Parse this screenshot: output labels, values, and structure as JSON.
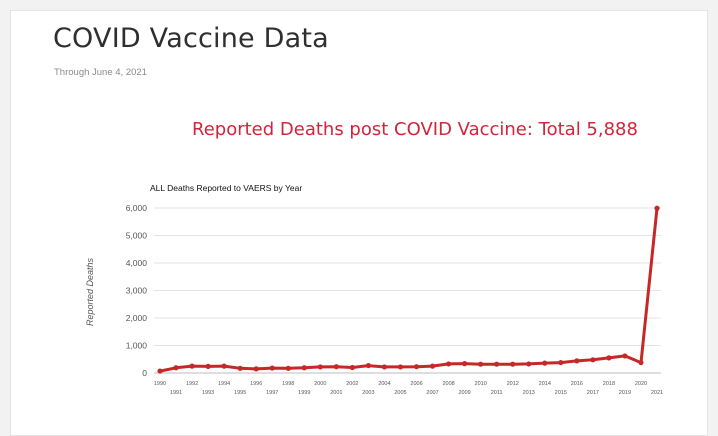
{
  "page": {
    "title": "COVID Vaccine Data",
    "subtitle": "Through June 4, 2021",
    "headline": "Reported Deaths post COVID Vaccine: Total 5,888"
  },
  "colors": {
    "headline": "#d2243a",
    "series": "#c62828",
    "grid": "#e3e3e3"
  },
  "chart_data": {
    "type": "line",
    "title": "ALL Deaths Reported to VAERS by Year",
    "xlabel": "",
    "ylabel": "Reported Deaths",
    "ylim": [
      0,
      6000
    ],
    "yticks": [
      0,
      1000,
      2000,
      3000,
      4000,
      5000,
      6000
    ],
    "ytick_labels": [
      "0",
      "1,000",
      "2,000",
      "3,000",
      "4,000",
      "5,000",
      "6,000"
    ],
    "grid": true,
    "legend": "none",
    "x": [
      "1990",
      "1991",
      "1992",
      "1993",
      "1994",
      "1995",
      "1996",
      "1997",
      "1998",
      "1999",
      "2000",
      "2001",
      "2002",
      "2003",
      "2004",
      "2005",
      "2006",
      "2007",
      "2008",
      "2009",
      "2010",
      "2011",
      "2012",
      "2013",
      "2014",
      "2015",
      "2016",
      "2017",
      "2018",
      "2019",
      "2020",
      "2021"
    ],
    "series": [
      {
        "values": [
          70,
          190,
          250,
          240,
          250,
          170,
          150,
          180,
          170,
          190,
          220,
          230,
          200,
          270,
          220,
          220,
          230,
          250,
          330,
          340,
          320,
          320,
          320,
          330,
          360,
          380,
          440,
          480,
          550,
          620,
          380,
          5990
        ]
      }
    ]
  }
}
